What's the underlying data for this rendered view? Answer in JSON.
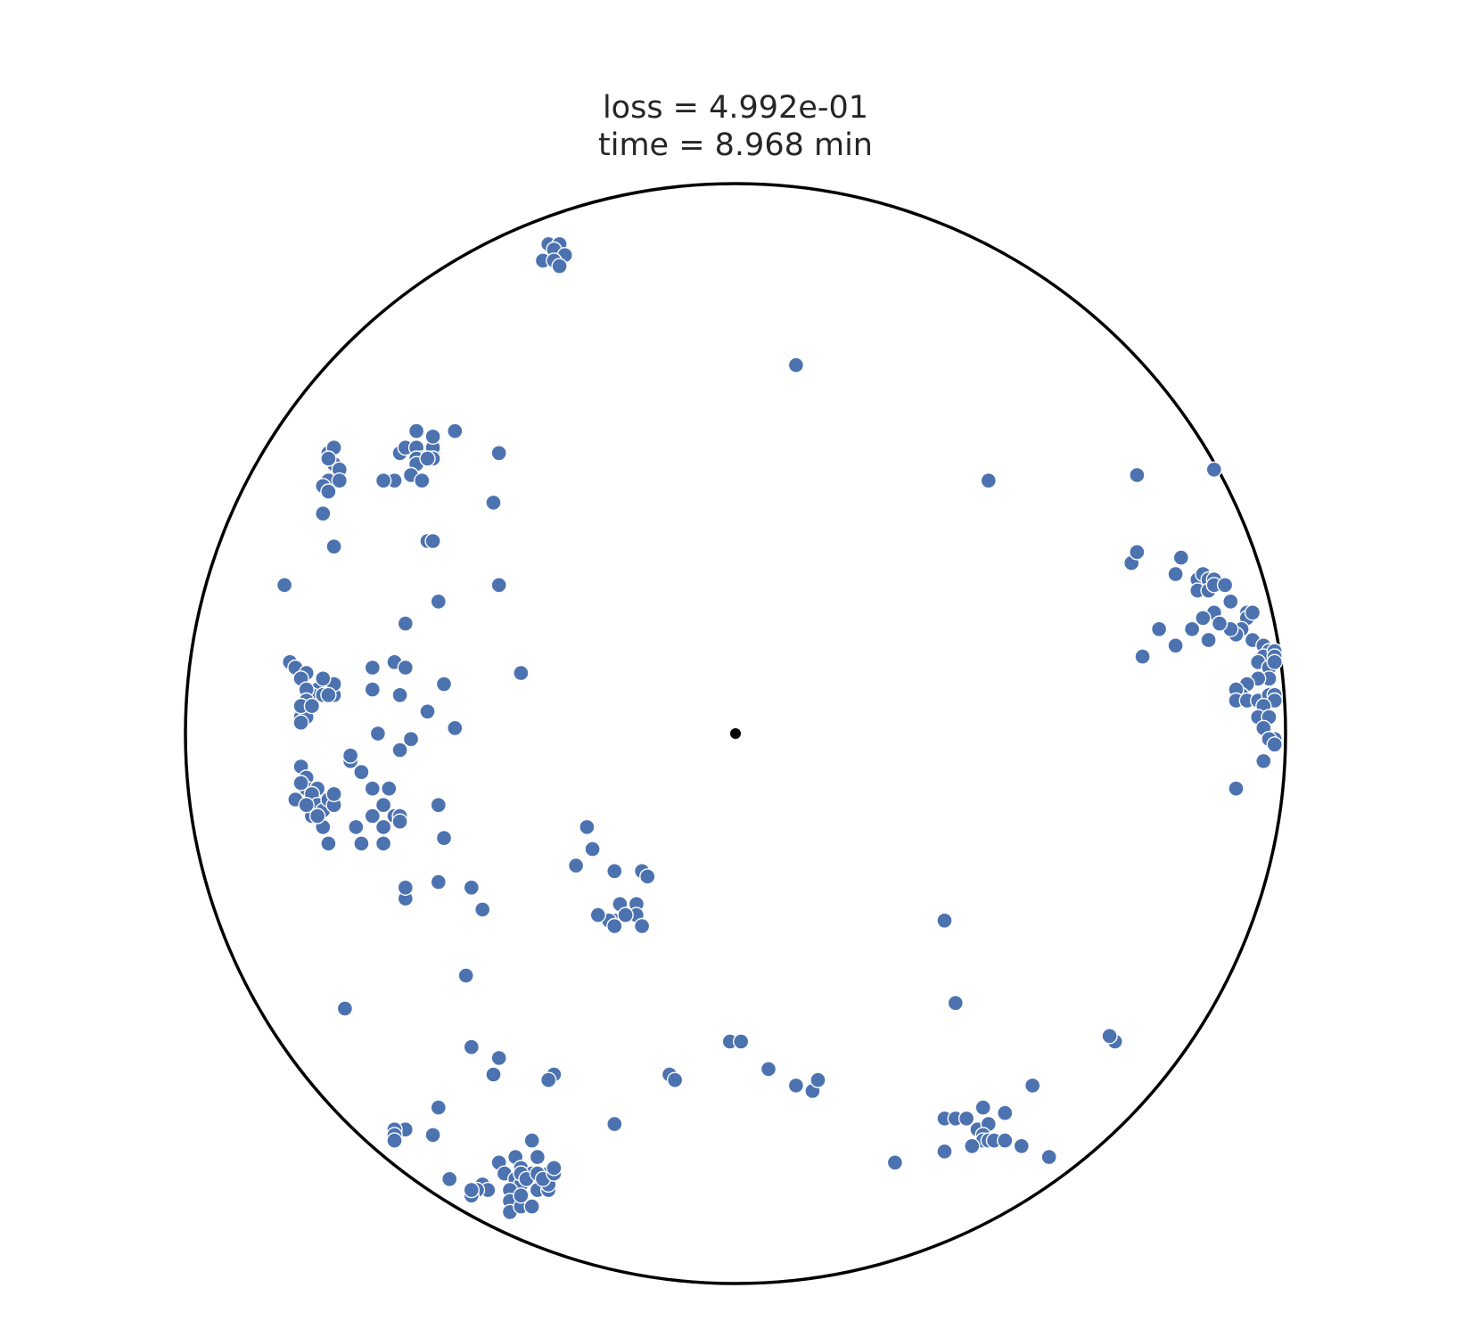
{
  "title_lines": [
    "loss = 4.992e-01",
    "time = 8.968 min"
  ],
  "colors": {
    "point": "#4c72b0",
    "boundary": "#000000",
    "center": "#000000",
    "background": "#ffffff"
  },
  "chart_data": {
    "type": "scatter",
    "title": "loss = 4.992e-01\ntime = 8.968 min",
    "xlabel": "",
    "ylabel": "",
    "xlim": [
      -1,
      1
    ],
    "ylim": [
      -1,
      1
    ],
    "grid": false,
    "boundary": "unit circle",
    "center_marker": [
      0,
      0
    ],
    "points": [
      [
        -0.34,
        0.89
      ],
      [
        -0.33,
        0.87
      ],
      [
        -0.32,
        0.89
      ],
      [
        -0.35,
        0.86
      ],
      [
        -0.33,
        0.88
      ],
      [
        -0.31,
        0.87
      ],
      [
        -0.33,
        0.86
      ],
      [
        -0.32,
        0.85
      ],
      [
        0.11,
        0.67
      ],
      [
        0.46,
        0.46
      ],
      [
        0.73,
        0.47
      ],
      [
        0.87,
        0.48
      ],
      [
        -0.74,
        0.51
      ],
      [
        -0.73,
        0.52
      ],
      [
        -0.73,
        0.49
      ],
      [
        -0.74,
        0.5
      ],
      [
        -0.72,
        0.48
      ],
      [
        -0.74,
        0.46
      ],
      [
        -0.75,
        0.45
      ],
      [
        -0.72,
        0.46
      ],
      [
        -0.74,
        0.44
      ],
      [
        -0.75,
        0.4
      ],
      [
        -0.82,
        0.27
      ],
      [
        -0.73,
        0.34
      ],
      [
        -0.56,
        0.35
      ],
      [
        -0.61,
        0.51
      ],
      [
        -0.6,
        0.52
      ],
      [
        -0.58,
        0.55
      ],
      [
        -0.58,
        0.52
      ],
      [
        -0.57,
        0.5
      ],
      [
        -0.55,
        0.51
      ],
      [
        -0.55,
        0.52
      ],
      [
        -0.55,
        0.54
      ],
      [
        -0.55,
        0.5
      ],
      [
        -0.58,
        0.5
      ],
      [
        -0.58,
        0.49
      ],
      [
        -0.59,
        0.47
      ],
      [
        -0.62,
        0.46
      ],
      [
        -0.56,
        0.5
      ],
      [
        -0.57,
        0.46
      ],
      [
        -0.64,
        0.46
      ],
      [
        -0.51,
        0.55
      ],
      [
        -0.43,
        0.51
      ],
      [
        -0.44,
        0.42
      ],
      [
        -0.43,
        0.27
      ],
      [
        -0.55,
        0.35
      ],
      [
        -0.66,
        0.12
      ],
      [
        -0.66,
        0.08
      ],
      [
        -0.6,
        0.2
      ],
      [
        -0.62,
        0.13
      ],
      [
        -0.6,
        0.12
      ],
      [
        -0.61,
        0.07
      ],
      [
        -0.39,
        0.11
      ],
      [
        -0.54,
        0.24
      ],
      [
        -0.53,
        0.09
      ],
      [
        -0.56,
        0.04
      ],
      [
        -0.65,
        0.0
      ],
      [
        -0.81,
        0.13
      ],
      [
        -0.8,
        0.12
      ],
      [
        -0.78,
        0.11
      ],
      [
        -0.79,
        0.1
      ],
      [
        -0.76,
        0.08
      ],
      [
        -0.77,
        0.07
      ],
      [
        -0.75,
        0.07
      ],
      [
        -0.73,
        0.07
      ],
      [
        -0.73,
        0.09
      ],
      [
        -0.75,
        0.1
      ],
      [
        -0.78,
        0.08
      ],
      [
        -0.78,
        0.06
      ],
      [
        -0.79,
        0.05
      ],
      [
        -0.79,
        0.03
      ],
      [
        -0.78,
        0.03
      ],
      [
        -0.79,
        0.02
      ],
      [
        -0.79,
        0.05
      ],
      [
        -0.77,
        0.05
      ],
      [
        -0.74,
        0.07
      ],
      [
        -0.51,
        0.01
      ],
      [
        -0.7,
        -0.05
      ],
      [
        -0.7,
        -0.04
      ],
      [
        -0.61,
        -0.03
      ],
      [
        -0.59,
        -0.01
      ],
      [
        -0.68,
        -0.07
      ],
      [
        -0.66,
        -0.1
      ],
      [
        -0.63,
        -0.1
      ],
      [
        -0.64,
        -0.13
      ],
      [
        -0.62,
        -0.15
      ],
      [
        -0.61,
        -0.15
      ],
      [
        -0.66,
        -0.15
      ],
      [
        -0.69,
        -0.17
      ],
      [
        -0.61,
        -0.16
      ],
      [
        -0.54,
        -0.13
      ],
      [
        -0.79,
        -0.06
      ],
      [
        -0.78,
        -0.08
      ],
      [
        -0.78,
        -0.1
      ],
      [
        -0.79,
        -0.09
      ],
      [
        -0.8,
        -0.12
      ],
      [
        -0.77,
        -0.12
      ],
      [
        -0.76,
        -0.1
      ],
      [
        -0.77,
        -0.11
      ],
      [
        -0.77,
        -0.14
      ],
      [
        -0.76,
        -0.13
      ],
      [
        -0.77,
        -0.15
      ],
      [
        -0.75,
        -0.14
      ],
      [
        -0.74,
        -0.12
      ],
      [
        -0.73,
        -0.13
      ],
      [
        -0.73,
        -0.11
      ],
      [
        -0.78,
        -0.13
      ],
      [
        -0.75,
        -0.17
      ],
      [
        -0.74,
        -0.2
      ],
      [
        -0.76,
        -0.15
      ],
      [
        -0.68,
        -0.2
      ],
      [
        -0.64,
        -0.17
      ],
      [
        -0.64,
        -0.2
      ],
      [
        -0.53,
        -0.19
      ],
      [
        -0.54,
        -0.27
      ],
      [
        -0.6,
        -0.3
      ],
      [
        -0.46,
        -0.32
      ],
      [
        -0.6,
        -0.28
      ],
      [
        -0.49,
        -0.44
      ],
      [
        -0.71,
        -0.5
      ],
      [
        -0.48,
        -0.28
      ],
      [
        -0.27,
        -0.17
      ],
      [
        -0.29,
        -0.24
      ],
      [
        -0.26,
        -0.21
      ],
      [
        -0.22,
        -0.25
      ],
      [
        -0.17,
        -0.25
      ],
      [
        -0.16,
        -0.26
      ],
      [
        -0.18,
        -0.31
      ],
      [
        -0.18,
        -0.33
      ],
      [
        -0.17,
        -0.35
      ],
      [
        -0.21,
        -0.31
      ],
      [
        -0.22,
        -0.34
      ],
      [
        -0.23,
        -0.34
      ],
      [
        -0.22,
        -0.35
      ],
      [
        -0.25,
        -0.33
      ],
      [
        -0.2,
        -0.33
      ],
      [
        -0.54,
        -0.68
      ],
      [
        -0.43,
        -0.59
      ],
      [
        -0.48,
        -0.57
      ],
      [
        -0.44,
        -0.62
      ],
      [
        -0.33,
        -0.62
      ],
      [
        -0.34,
        -0.63
      ],
      [
        -0.12,
        -0.62
      ],
      [
        -0.37,
        -0.74
      ],
      [
        -0.36,
        -0.77
      ],
      [
        -0.43,
        -0.78
      ],
      [
        -0.46,
        -0.82
      ],
      [
        -0.42,
        -0.8
      ],
      [
        -0.4,
        -0.77
      ],
      [
        -0.39,
        -0.79
      ],
      [
        -0.4,
        -0.81
      ],
      [
        -0.39,
        -0.82
      ],
      [
        -0.37,
        -0.8
      ],
      [
        -0.36,
        -0.83
      ],
      [
        -0.34,
        -0.83
      ],
      [
        -0.34,
        -0.81
      ],
      [
        -0.39,
        -0.8
      ],
      [
        -0.38,
        -0.81
      ],
      [
        -0.34,
        -0.8
      ],
      [
        -0.41,
        -0.83
      ],
      [
        -0.45,
        -0.83
      ],
      [
        -0.41,
        -0.85
      ],
      [
        -0.41,
        -0.87
      ],
      [
        -0.39,
        -0.86
      ],
      [
        -0.39,
        -0.84
      ],
      [
        -0.37,
        -0.86
      ],
      [
        -0.34,
        -0.82
      ],
      [
        -0.36,
        -0.8
      ],
      [
        -0.35,
        -0.81
      ],
      [
        -0.33,
        -0.8
      ],
      [
        -0.33,
        -0.79
      ],
      [
        -0.6,
        -0.72
      ],
      [
        -0.62,
        -0.72
      ],
      [
        -0.62,
        -0.73
      ],
      [
        -0.62,
        -0.74
      ],
      [
        -0.55,
        -0.73
      ],
      [
        -0.47,
        -0.83
      ],
      [
        -0.48,
        -0.84
      ],
      [
        -0.48,
        -0.83
      ],
      [
        -0.52,
        -0.81
      ],
      [
        -0.22,
        -0.71
      ],
      [
        -0.11,
        -0.63
      ],
      [
        -0.01,
        -0.56
      ],
      [
        0.01,
        -0.56
      ],
      [
        0.06,
        -0.61
      ],
      [
        0.11,
        -0.64
      ],
      [
        0.14,
        -0.65
      ],
      [
        0.15,
        -0.63
      ],
      [
        0.38,
        -0.34
      ],
      [
        0.4,
        -0.49
      ],
      [
        0.38,
        -0.7
      ],
      [
        0.4,
        -0.7
      ],
      [
        0.38,
        -0.76
      ],
      [
        0.42,
        -0.7
      ],
      [
        0.45,
        -0.68
      ],
      [
        0.44,
        -0.72
      ],
      [
        0.46,
        -0.71
      ],
      [
        0.45,
        -0.73
      ],
      [
        0.45,
        -0.74
      ],
      [
        0.43,
        -0.75
      ],
      [
        0.46,
        -0.74
      ],
      [
        0.47,
        -0.74
      ],
      [
        0.49,
        -0.69
      ],
      [
        0.49,
        -0.74
      ],
      [
        0.52,
        -0.75
      ],
      [
        0.54,
        -0.64
      ],
      [
        0.57,
        -0.77
      ],
      [
        0.69,
        -0.56
      ],
      [
        0.68,
        -0.55
      ],
      [
        0.29,
        -0.78
      ],
      [
        0.72,
        0.31
      ],
      [
        0.73,
        0.33
      ],
      [
        0.81,
        0.32
      ],
      [
        0.8,
        0.29
      ],
      [
        0.84,
        0.28
      ],
      [
        0.85,
        0.29
      ],
      [
        0.86,
        0.28
      ],
      [
        0.87,
        0.28
      ],
      [
        0.84,
        0.26
      ],
      [
        0.86,
        0.26
      ],
      [
        0.87,
        0.27
      ],
      [
        0.89,
        0.27
      ],
      [
        0.9,
        0.24
      ],
      [
        0.87,
        0.22
      ],
      [
        0.85,
        0.21
      ],
      [
        0.88,
        0.2
      ],
      [
        0.93,
        0.22
      ],
      [
        0.93,
        0.21
      ],
      [
        0.92,
        0.19
      ],
      [
        0.91,
        0.18
      ],
      [
        0.94,
        0.17
      ],
      [
        0.96,
        0.16
      ],
      [
        0.97,
        0.15
      ],
      [
        0.96,
        0.14
      ],
      [
        0.98,
        0.15
      ],
      [
        0.98,
        0.14
      ],
      [
        0.95,
        0.13
      ],
      [
        0.97,
        0.12
      ],
      [
        0.98,
        0.13
      ],
      [
        0.97,
        0.1
      ],
      [
        0.95,
        0.1
      ],
      [
        0.93,
        0.09
      ],
      [
        0.92,
        0.07
      ],
      [
        0.91,
        0.08
      ],
      [
        0.91,
        0.06
      ],
      [
        0.93,
        0.06
      ],
      [
        0.95,
        0.06
      ],
      [
        0.97,
        0.07
      ],
      [
        0.98,
        0.07
      ],
      [
        0.98,
        0.06
      ],
      [
        0.96,
        0.05
      ],
      [
        0.95,
        0.03
      ],
      [
        0.97,
        0.03
      ],
      [
        0.96,
        0.01
      ],
      [
        0.98,
        -0.01
      ],
      [
        0.97,
        -0.01
      ],
      [
        0.98,
        -0.02
      ],
      [
        0.96,
        -0.05
      ],
      [
        0.91,
        -0.1
      ],
      [
        0.74,
        0.14
      ],
      [
        0.8,
        0.16
      ],
      [
        0.77,
        0.19
      ],
      [
        0.83,
        0.19
      ],
      [
        0.86,
        0.17
      ],
      [
        0.9,
        0.19
      ],
      [
        0.88,
        0.2
      ],
      [
        0.94,
        0.22
      ]
    ]
  }
}
